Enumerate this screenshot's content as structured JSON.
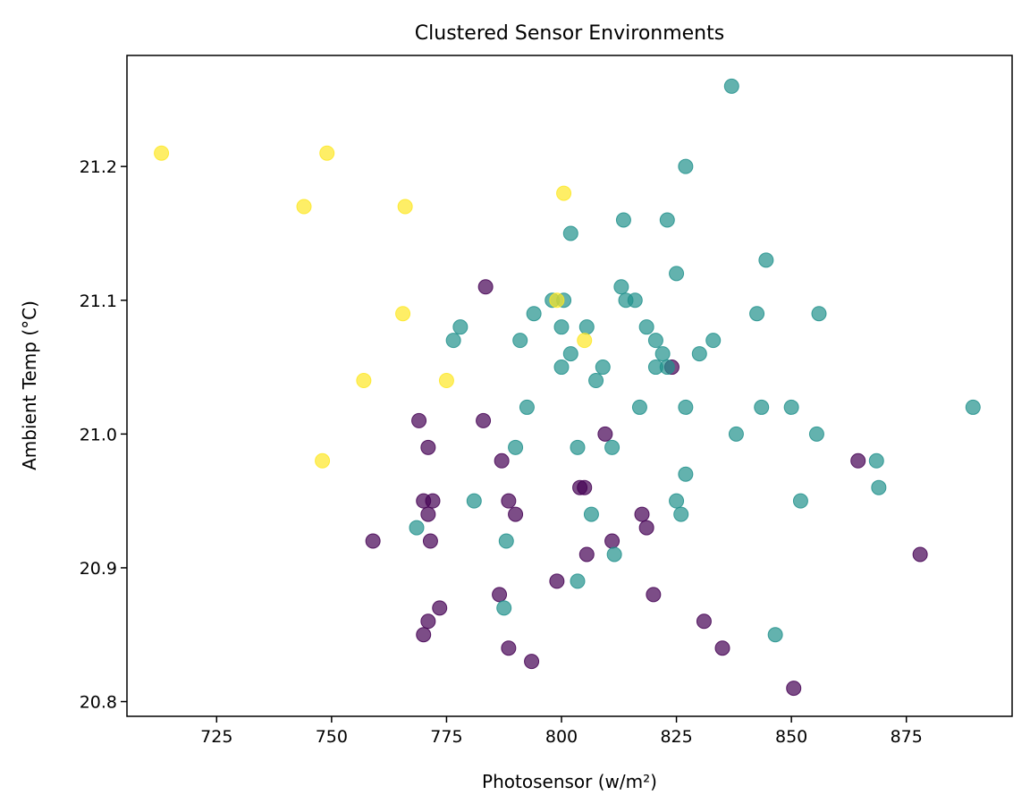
{
  "chart_data": {
    "type": "scatter",
    "title": "Clustered Sensor Environments",
    "xlabel": "Photosensor (w/m²)",
    "ylabel": "Ambient Temp (°C)",
    "xlim": [
      705.5,
      898.0
    ],
    "ylim": [
      20.789,
      21.283
    ],
    "xticks": [
      725,
      750,
      775,
      800,
      825,
      850,
      875
    ],
    "yticks": [
      20.8,
      20.9,
      21.0,
      21.1,
      21.2
    ],
    "ytick_labels": [
      "20.8",
      "20.9",
      "21.0",
      "21.1",
      "21.2"
    ],
    "grid": false,
    "legend": "none",
    "series": [
      {
        "color": "#440154",
        "points": [
          [
            783.5,
            21.11
          ],
          [
            824.0,
            21.05
          ],
          [
            769.0,
            21.01
          ],
          [
            783.0,
            21.01
          ],
          [
            771.0,
            20.99
          ],
          [
            809.5,
            21.0
          ],
          [
            864.5,
            20.98
          ],
          [
            787.0,
            20.98
          ],
          [
            770.0,
            20.95
          ],
          [
            772.0,
            20.95
          ],
          [
            788.5,
            20.95
          ],
          [
            771.0,
            20.94
          ],
          [
            790.0,
            20.94
          ],
          [
            804.0,
            20.96
          ],
          [
            805.0,
            20.96
          ],
          [
            817.5,
            20.94
          ],
          [
            818.5,
            20.93
          ],
          [
            759.0,
            20.92
          ],
          [
            771.5,
            20.92
          ],
          [
            811.0,
            20.92
          ],
          [
            805.5,
            20.91
          ],
          [
            878.0,
            20.91
          ],
          [
            799.0,
            20.89
          ],
          [
            786.5,
            20.88
          ],
          [
            820.0,
            20.88
          ],
          [
            773.5,
            20.87
          ],
          [
            771.0,
            20.86
          ],
          [
            831.0,
            20.86
          ],
          [
            770.0,
            20.85
          ],
          [
            788.5,
            20.84
          ],
          [
            835.0,
            20.84
          ],
          [
            793.5,
            20.83
          ],
          [
            850.5,
            20.81
          ]
        ]
      },
      {
        "color": "#21918c",
        "points": [
          [
            837.0,
            21.26
          ],
          [
            827.0,
            21.2
          ],
          [
            813.5,
            21.16
          ],
          [
            823.0,
            21.16
          ],
          [
            802.0,
            21.15
          ],
          [
            844.5,
            21.13
          ],
          [
            825.0,
            21.12
          ],
          [
            813.0,
            21.11
          ],
          [
            798.0,
            21.1
          ],
          [
            800.5,
            21.1
          ],
          [
            814.0,
            21.1
          ],
          [
            816.0,
            21.1
          ],
          [
            794.0,
            21.09
          ],
          [
            842.5,
            21.09
          ],
          [
            856.0,
            21.09
          ],
          [
            778.0,
            21.08
          ],
          [
            800.0,
            21.08
          ],
          [
            805.5,
            21.08
          ],
          [
            818.5,
            21.08
          ],
          [
            776.5,
            21.07
          ],
          [
            791.0,
            21.07
          ],
          [
            820.5,
            21.07
          ],
          [
            833.0,
            21.07
          ],
          [
            802.0,
            21.06
          ],
          [
            822.0,
            21.06
          ],
          [
            830.0,
            21.06
          ],
          [
            800.0,
            21.05
          ],
          [
            809.0,
            21.05
          ],
          [
            820.5,
            21.05
          ],
          [
            823.0,
            21.05
          ],
          [
            807.5,
            21.04
          ],
          [
            792.5,
            21.02
          ],
          [
            817.0,
            21.02
          ],
          [
            827.0,
            21.02
          ],
          [
            843.5,
            21.02
          ],
          [
            850.0,
            21.02
          ],
          [
            889.5,
            21.02
          ],
          [
            838.0,
            21.0
          ],
          [
            855.5,
            21.0
          ],
          [
            790.0,
            20.99
          ],
          [
            803.5,
            20.99
          ],
          [
            811.0,
            20.99
          ],
          [
            868.5,
            20.98
          ],
          [
            827.0,
            20.97
          ],
          [
            869.0,
            20.96
          ],
          [
            781.0,
            20.95
          ],
          [
            825.0,
            20.95
          ],
          [
            852.0,
            20.95
          ],
          [
            806.5,
            20.94
          ],
          [
            826.0,
            20.94
          ],
          [
            768.5,
            20.93
          ],
          [
            788.0,
            20.92
          ],
          [
            811.5,
            20.91
          ],
          [
            803.5,
            20.89
          ],
          [
            787.5,
            20.87
          ],
          [
            846.5,
            20.85
          ]
        ]
      },
      {
        "color": "#fde725",
        "points": [
          [
            713.0,
            21.21
          ],
          [
            749.0,
            21.21
          ],
          [
            800.5,
            21.18
          ],
          [
            744.0,
            21.17
          ],
          [
            766.0,
            21.17
          ],
          [
            799.0,
            21.1
          ],
          [
            765.5,
            21.09
          ],
          [
            805.0,
            21.07
          ],
          [
            757.0,
            21.04
          ],
          [
            775.0,
            21.04
          ],
          [
            748.0,
            20.98
          ]
        ]
      }
    ]
  }
}
